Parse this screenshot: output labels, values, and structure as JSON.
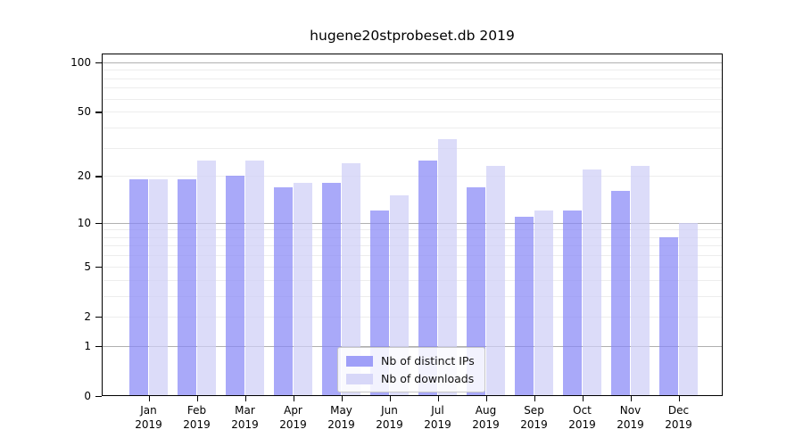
{
  "title": "hugene20stprobeset.db 2019",
  "chart_data": {
    "type": "bar",
    "title": "hugene20stprobeset.db 2019",
    "categories": [
      "Jan",
      "Feb",
      "Mar",
      "Apr",
      "May",
      "Jun",
      "Jul",
      "Aug",
      "Sep",
      "Oct",
      "Nov",
      "Dec"
    ],
    "year": "2019",
    "series": [
      {
        "name": "Nb of distinct IPs",
        "color": "#8888f6",
        "values": [
          19,
          19,
          20,
          17,
          18,
          12,
          25,
          17,
          11,
          12,
          16,
          8
        ]
      },
      {
        "name": "Nb of downloads",
        "color": "#cecef6",
        "values": [
          19,
          25,
          25,
          18,
          24,
          15,
          34,
          23,
          12,
          22,
          23,
          10
        ]
      }
    ],
    "yscale": "log10(1+x)",
    "ylim": [
      0,
      113
    ],
    "ytick_labels": [
      "0",
      "1",
      "2",
      "5",
      "10",
      "20",
      "50",
      "100"
    ],
    "ytick_values": [
      0,
      1,
      2,
      5,
      10,
      20,
      50,
      100
    ],
    "major_gridlines": [
      1,
      10,
      100
    ],
    "minor_gridlines": [
      2,
      3,
      4,
      5,
      6,
      7,
      8,
      9,
      20,
      30,
      40,
      50,
      60,
      70,
      80,
      90
    ],
    "grid": true,
    "legend_position": "bottom-center",
    "colors": {
      "major_grid": "#b0b0b0",
      "minor_grid": "#ededed",
      "axis": "#000000",
      "background": "#ffffff"
    }
  }
}
